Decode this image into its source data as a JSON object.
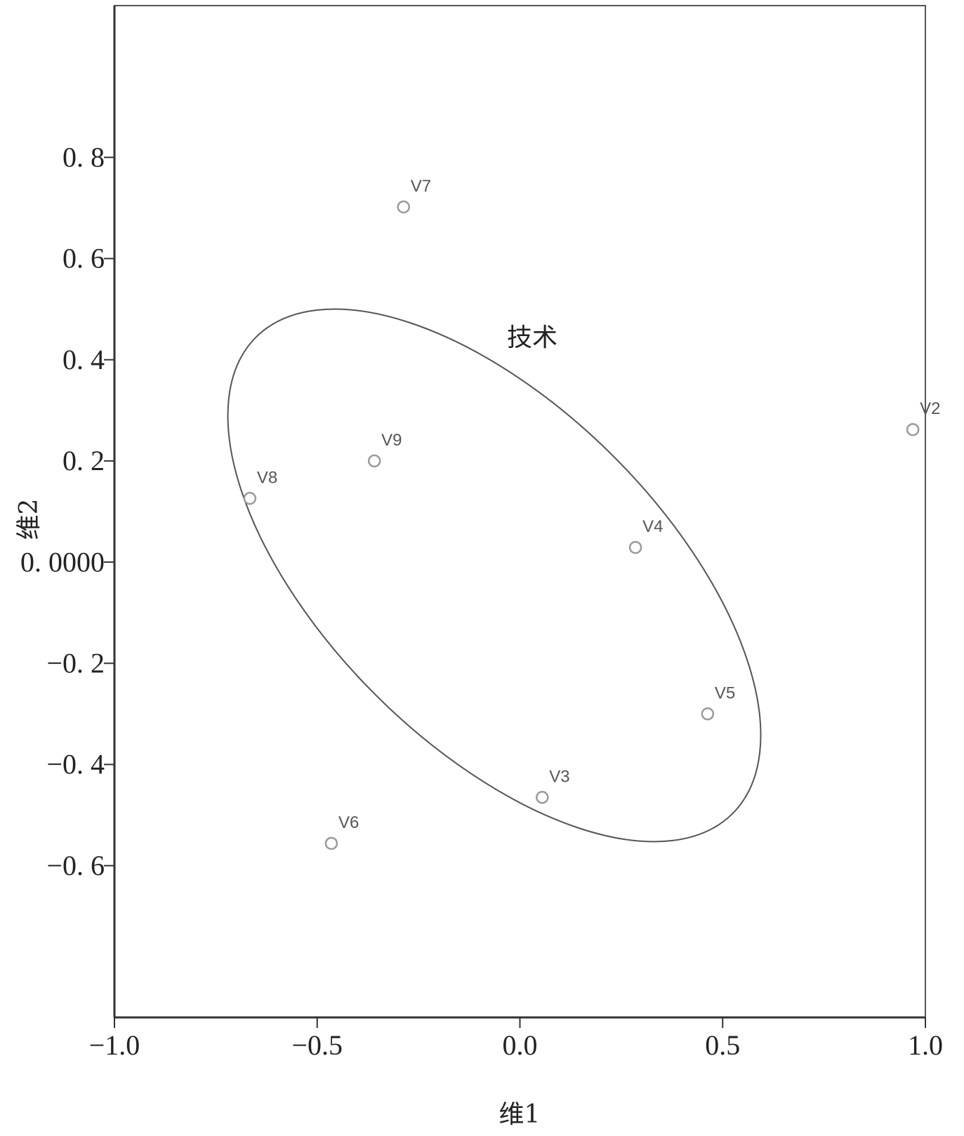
{
  "chart_data": {
    "type": "scatter",
    "x_label": "维1",
    "y_label": "维2",
    "annotation": "技术",
    "color": "#9a9a9a",
    "series": [
      {
        "name": "V",
        "labels": [
          "V7",
          "V2",
          "V9",
          "V8",
          "V4",
          "V5",
          "V3",
          "V6"
        ],
        "x": [
          -0.287,
          0.969,
          -0.359,
          -0.666,
          0.285,
          0.463,
          0.055,
          -0.465
        ],
        "values": [
          0.702,
          0.262,
          0.2,
          0.126,
          0.029,
          -0.3,
          -0.465,
          -0.556
        ]
      }
    ],
    "xlim": [
      -1.0,
      1.0
    ],
    "ylim": [
      -0.9,
      1.1
    ],
    "xticks": [
      {
        "value": -1.0,
        "label": "−1.0"
      },
      {
        "value": -0.5,
        "label": "−0.5"
      },
      {
        "value": 0.0,
        "label": "0.0"
      },
      {
        "value": 0.5,
        "label": "0.5"
      },
      {
        "value": 1.0,
        "label": "1.0"
      }
    ],
    "yticks": [
      {
        "value": 0.8,
        "label": "0. 8"
      },
      {
        "value": 0.6,
        "label": "0. 6"
      },
      {
        "value": 0.4,
        "label": "0. 4"
      },
      {
        "value": 0.2,
        "label": "0. 2"
      },
      {
        "value": 0.0,
        "label": "0. 0000"
      },
      {
        "value": -0.2,
        "label": "−0. 2"
      },
      {
        "value": -0.4,
        "label": "−0. 4"
      },
      {
        "value": -0.6,
        "label": "−0. 6"
      }
    ]
  }
}
